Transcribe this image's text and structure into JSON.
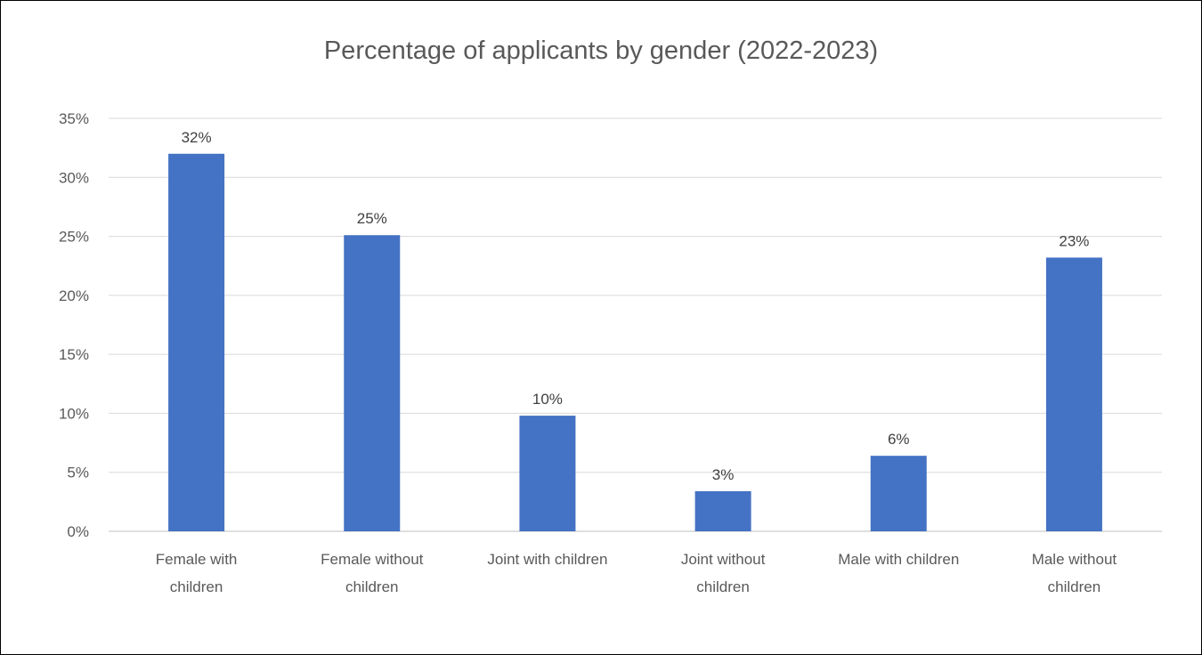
{
  "chart_data": {
    "type": "bar",
    "title": "Percentage of applicants by gender (2022-2023)",
    "xlabel": "",
    "ylabel": "",
    "categories": [
      [
        "Female with",
        "children"
      ],
      [
        "Female without",
        "children"
      ],
      [
        "Joint with children"
      ],
      [
        "Joint without",
        "children"
      ],
      [
        "Male with children"
      ],
      [
        "Male without",
        "children"
      ]
    ],
    "values": [
      32,
      25.1,
      9.8,
      3.4,
      6.4,
      23.2
    ],
    "data_labels": [
      "32%",
      "25%",
      "10%",
      "3%",
      "6%",
      "23%"
    ],
    "ylim": [
      0,
      35
    ],
    "yticks": [
      0,
      5,
      10,
      15,
      20,
      25,
      30,
      35
    ],
    "ytick_labels": [
      "0%",
      "5%",
      "10%",
      "15%",
      "20%",
      "25%",
      "30%",
      "35%"
    ],
    "grid": true,
    "legend": "none",
    "bar_color": "#4472C4"
  }
}
